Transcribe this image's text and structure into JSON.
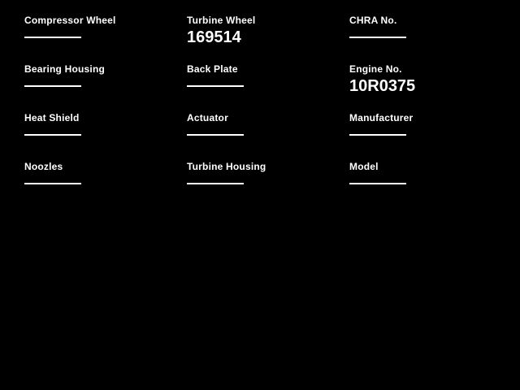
{
  "page": {
    "background_color": "#000000",
    "text_color": "#ffffff"
  },
  "form": {
    "fields": [
      {
        "label": "Compressor Wheel",
        "value": ""
      },
      {
        "label": "Turbine Wheel",
        "value": "169514"
      },
      {
        "label": "CHRA No.",
        "value": ""
      },
      {
        "label": "Bearing Housing",
        "value": ""
      },
      {
        "label": "Back Plate",
        "value": ""
      },
      {
        "label": "Engine No.",
        "value": "10R0375"
      },
      {
        "label": "Heat Shield",
        "value": ""
      },
      {
        "label": "Actuator",
        "value": ""
      },
      {
        "label": "Manufacturer",
        "value": ""
      },
      {
        "label": "Noozles",
        "value": ""
      },
      {
        "label": "Turbine Housing",
        "value": ""
      },
      {
        "label": "Model",
        "value": ""
      }
    ]
  }
}
